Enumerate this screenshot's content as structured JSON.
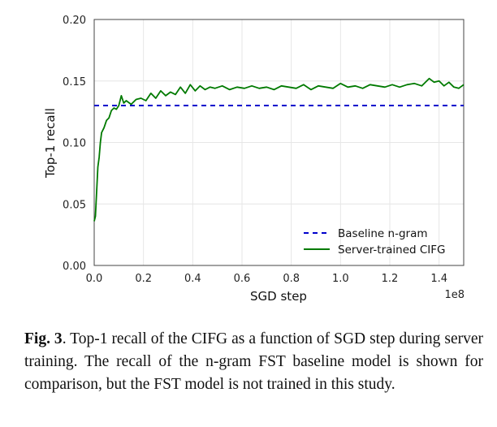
{
  "chart_data": {
    "type": "line",
    "title": "",
    "xlabel": "SGD step",
    "ylabel": "Top-1 recall",
    "x_offset_label": "1e8",
    "xlim": [
      0,
      1.5
    ],
    "ylim": [
      0,
      0.2
    ],
    "x_ticks": [
      "0.0",
      "0.2",
      "0.4",
      "0.6",
      "0.8",
      "1.0",
      "1.2",
      "1.4"
    ],
    "y_ticks": [
      "0.00",
      "0.05",
      "0.10",
      "0.15",
      "0.20"
    ],
    "grid": true,
    "legend_position": "lower-right",
    "series": [
      {
        "name": "Baseline n-gram",
        "style": "dashed",
        "color": "#0000cc",
        "x": [
          0,
          1.5
        ],
        "y": [
          0.13,
          0.13
        ]
      },
      {
        "name": "Server-trained CIFG",
        "style": "solid",
        "color": "#007a00",
        "x": [
          0.0,
          0.005,
          0.01,
          0.015,
          0.02,
          0.025,
          0.03,
          0.04,
          0.05,
          0.06,
          0.07,
          0.08,
          0.09,
          0.1,
          0.11,
          0.12,
          0.13,
          0.15,
          0.17,
          0.19,
          0.21,
          0.23,
          0.25,
          0.27,
          0.29,
          0.31,
          0.33,
          0.35,
          0.37,
          0.39,
          0.41,
          0.43,
          0.45,
          0.47,
          0.49,
          0.52,
          0.55,
          0.58,
          0.61,
          0.64,
          0.67,
          0.7,
          0.73,
          0.76,
          0.79,
          0.82,
          0.85,
          0.88,
          0.91,
          0.94,
          0.97,
          1.0,
          1.03,
          1.06,
          1.09,
          1.12,
          1.15,
          1.18,
          1.21,
          1.24,
          1.27,
          1.3,
          1.33,
          1.36,
          1.38,
          1.4,
          1.42,
          1.44,
          1.46,
          1.48,
          1.5
        ],
        "y": [
          0.036,
          0.04,
          0.06,
          0.08,
          0.088,
          0.1,
          0.108,
          0.112,
          0.118,
          0.12,
          0.126,
          0.128,
          0.127,
          0.13,
          0.138,
          0.132,
          0.134,
          0.131,
          0.135,
          0.136,
          0.134,
          0.14,
          0.136,
          0.142,
          0.138,
          0.141,
          0.139,
          0.145,
          0.14,
          0.147,
          0.142,
          0.146,
          0.143,
          0.145,
          0.144,
          0.146,
          0.143,
          0.145,
          0.144,
          0.146,
          0.144,
          0.145,
          0.143,
          0.146,
          0.145,
          0.144,
          0.147,
          0.143,
          0.146,
          0.145,
          0.144,
          0.148,
          0.145,
          0.146,
          0.144,
          0.147,
          0.146,
          0.145,
          0.147,
          0.145,
          0.147,
          0.148,
          0.146,
          0.152,
          0.149,
          0.15,
          0.146,
          0.149,
          0.145,
          0.144,
          0.147
        ]
      }
    ]
  },
  "caption": {
    "label": "Fig. 3",
    "text": ". Top-1 recall of the CIFG as a function of SGD step during server training. The recall of the n-gram FST baseline model is shown for comparison, but the FST model is not trained in this study."
  }
}
